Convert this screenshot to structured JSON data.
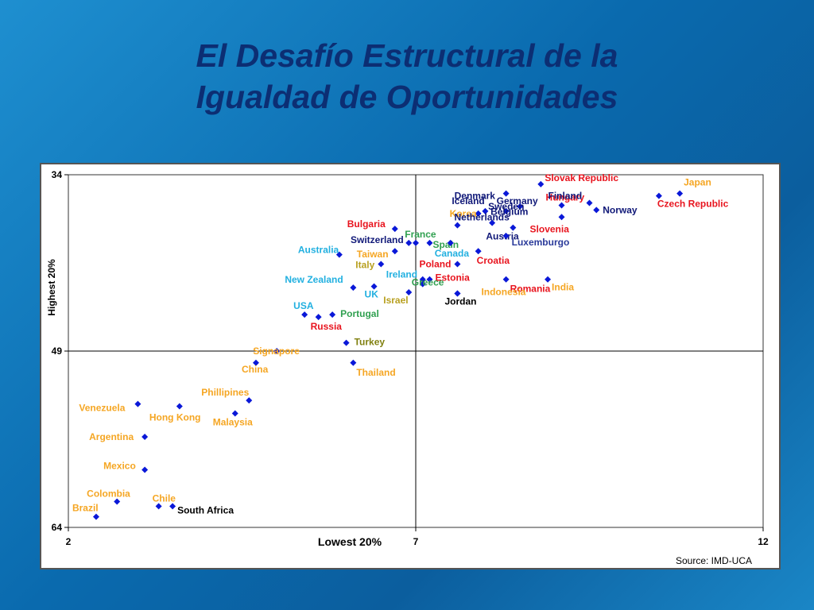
{
  "title": {
    "line1": "El Desafío Estructural de la",
    "line2": "Igualdad de Oportunidades"
  },
  "chart_data": {
    "type": "scatter",
    "xlabel": "Lowest 20%",
    "ylabel": "Highest 20%",
    "xlim": [
      2,
      12
    ],
    "ylim": [
      64,
      34
    ],
    "y_inverted": true,
    "xticks": [
      "2",
      "7",
      "12"
    ],
    "yticks": [
      "34",
      "49",
      "64"
    ],
    "source": "Source: IMD-UCA",
    "points": [
      {
        "label": "Slovak Republic",
        "x": 8.8,
        "y": 34.8,
        "color": "#e8141e"
      },
      {
        "label": "Japan",
        "x": 10.8,
        "y": 35.6,
        "color": "#f5a623"
      },
      {
        "label": "Czech Republic",
        "x": 10.5,
        "y": 35.8,
        "color": "#e8141e"
      },
      {
        "label": "Denmark",
        "x": 8.3,
        "y": 35.6,
        "color": "#101878"
      },
      {
        "label": "Hungary",
        "x": 9.1,
        "y": 36.6,
        "color": "#e8141e"
      },
      {
        "label": "Finland",
        "x": 9.5,
        "y": 36.4,
        "color": "#101878"
      },
      {
        "label": "Norway",
        "x": 9.6,
        "y": 37.0,
        "color": "#101878"
      },
      {
        "label": "Iceland",
        "x": 8.0,
        "y": 37.1,
        "color": "#101878"
      },
      {
        "label": "Germany",
        "x": 8.3,
        "y": 37.1,
        "color": "#101878"
      },
      {
        "label": "Sweden",
        "x": 8.5,
        "y": 36.7,
        "color": "#101878"
      },
      {
        "label": "Korea",
        "x": 7.9,
        "y": 37.3,
        "color": "#f5a623"
      },
      {
        "label": "Slovenia",
        "x": 9.1,
        "y": 37.6,
        "color": "#e8141e"
      },
      {
        "label": "Belgium",
        "x": 8.1,
        "y": 38.1,
        "color": "#101878"
      },
      {
        "label": "Netherlands",
        "x": 7.6,
        "y": 38.3,
        "color": "#101878"
      },
      {
        "label": "Austria",
        "x": 8.4,
        "y": 38.5,
        "color": "#101878"
      },
      {
        "label": "Bulgaria",
        "x": 6.7,
        "y": 38.6,
        "color": "#e8141e"
      },
      {
        "label": "Luxemburgo",
        "x": 8.3,
        "y": 39.2,
        "color": "#2a3a9a"
      },
      {
        "label": "France",
        "x": 6.9,
        "y": 39.8,
        "color": "#30a050"
      },
      {
        "label": "Switzerland",
        "x": 7.0,
        "y": 39.8,
        "color": "#101878"
      },
      {
        "label": "Spain",
        "x": 7.2,
        "y": 39.8,
        "color": "#30a050"
      },
      {
        "label": "Canada",
        "x": 7.5,
        "y": 39.8,
        "color": "#22b0e0"
      },
      {
        "label": "Croatia",
        "x": 7.9,
        "y": 40.5,
        "color": "#e8141e"
      },
      {
        "label": "Taiwan",
        "x": 6.7,
        "y": 40.5,
        "color": "#f5a623"
      },
      {
        "label": "Australia",
        "x": 5.9,
        "y": 40.8,
        "color": "#22b0e0"
      },
      {
        "label": "Italy",
        "x": 6.5,
        "y": 41.6,
        "color": "#b8a020"
      },
      {
        "label": "Poland",
        "x": 7.6,
        "y": 41.6,
        "color": "#e8141e"
      },
      {
        "label": "Romania",
        "x": 8.3,
        "y": 42.9,
        "color": "#e8141e"
      },
      {
        "label": "Ireland",
        "x": 7.1,
        "y": 42.9,
        "color": "#22b0e0"
      },
      {
        "label": "Estonia",
        "x": 7.2,
        "y": 42.9,
        "color": "#e8141e"
      },
      {
        "label": "India",
        "x": 8.9,
        "y": 42.9,
        "color": "#f5a623"
      },
      {
        "label": "New Zealand",
        "x": 6.1,
        "y": 43.6,
        "color": "#22b0e0"
      },
      {
        "label": "UK",
        "x": 6.4,
        "y": 43.5,
        "color": "#22b0e0"
      },
      {
        "label": "Greece",
        "x": 7.1,
        "y": 43.3,
        "color": "#30a050"
      },
      {
        "label": "Indonesia",
        "x": 7.6,
        "y": 44.1,
        "color": "#f5a623"
      },
      {
        "label": "Israel",
        "x": 6.9,
        "y": 44.0,
        "color": "#b8a020"
      },
      {
        "label": "Jordan",
        "x": 7.6,
        "y": 44.1,
        "color": "#000000"
      },
      {
        "label": "USA",
        "x": 5.4,
        "y": 45.9,
        "color": "#22b0e0"
      },
      {
        "label": "Portugal",
        "x": 5.8,
        "y": 45.9,
        "color": "#30a050"
      },
      {
        "label": "Russia",
        "x": 5.6,
        "y": 46.1,
        "color": "#e8141e"
      },
      {
        "label": "Turkey",
        "x": 6.0,
        "y": 48.3,
        "color": "#808010"
      },
      {
        "label": "Signapore",
        "x": 5.0,
        "y": 49.0,
        "color": "#f5a623"
      },
      {
        "label": "China",
        "x": 4.7,
        "y": 50.0,
        "color": "#f5a623"
      },
      {
        "label": "Thailand",
        "x": 6.1,
        "y": 50.0,
        "color": "#f5a623"
      },
      {
        "label": "Phillipines",
        "x": 4.6,
        "y": 53.2,
        "color": "#f5a623"
      },
      {
        "label": "Venezuela",
        "x": 3.0,
        "y": 53.5,
        "color": "#f5a623"
      },
      {
        "label": "Hong Kong",
        "x": 3.6,
        "y": 53.7,
        "color": "#f5a623"
      },
      {
        "label": "Malaysia",
        "x": 4.4,
        "y": 54.3,
        "color": "#f5a623"
      },
      {
        "label": "Argentina",
        "x": 3.1,
        "y": 56.3,
        "color": "#f5a623"
      },
      {
        "label": "Mexico",
        "x": 3.1,
        "y": 59.1,
        "color": "#f5a623"
      },
      {
        "label": "Colombia",
        "x": 2.7,
        "y": 61.8,
        "color": "#f5a623"
      },
      {
        "label": "Chile",
        "x": 3.3,
        "y": 62.2,
        "color": "#f5a623"
      },
      {
        "label": "South Africa",
        "x": 3.5,
        "y": 62.2,
        "color": "#000000"
      },
      {
        "label": "Brazil",
        "x": 2.4,
        "y": 63.1,
        "color": "#f5a623"
      }
    ]
  }
}
